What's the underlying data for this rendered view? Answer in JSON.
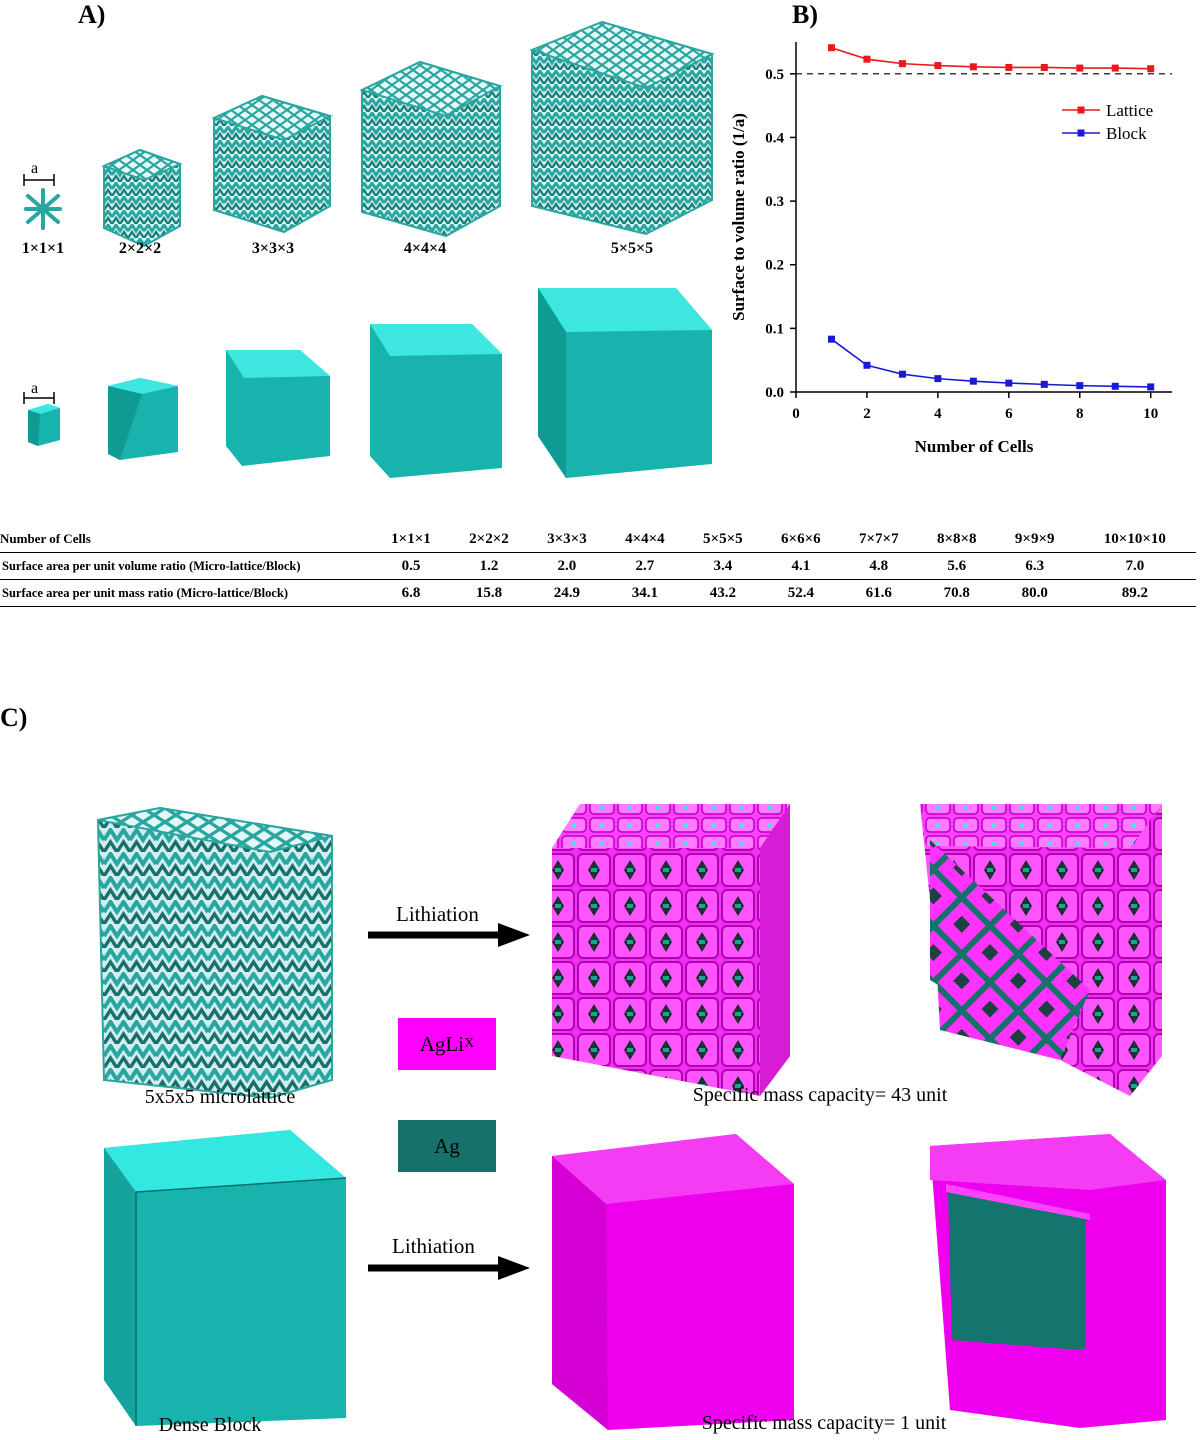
{
  "panels": {
    "a": "A)",
    "b": "B)",
    "c": "C)"
  },
  "panel_a": {
    "dimension_label": "a",
    "lattice_labels": [
      "1×1×1",
      "2×2×2",
      "3×3×3",
      "4×4×4",
      "5×5×5"
    ],
    "lattice_color": "#2aa6a0",
    "block_color": "#17b3ac"
  },
  "chart_data": {
    "type": "line",
    "ylabel": "Surface to volume ratio (1/a)",
    "xlabel": "Number of Cells",
    "xlim": [
      0,
      10.6
    ],
    "ylim": [
      0,
      0.55
    ],
    "xticks": [
      0,
      2,
      4,
      6,
      8,
      10
    ],
    "yticks": [
      0.0,
      0.1,
      0.2,
      0.3,
      0.4,
      0.5
    ],
    "ytick_labels": [
      "0.0",
      "0.1",
      "0.2",
      "0.3",
      "0.4",
      "0.5"
    ],
    "reference_line": 0.5,
    "legend_position": "upper-right",
    "x": [
      1,
      2,
      3,
      4,
      5,
      6,
      7,
      8,
      9,
      10
    ],
    "series": [
      {
        "name": "Lattice",
        "color": "#e8191d",
        "values": [
          0.541,
          0.523,
          0.516,
          0.513,
          0.511,
          0.51,
          0.51,
          0.509,
          0.509,
          0.508
        ]
      },
      {
        "name": "Block",
        "color": "#1a1ad6",
        "values": [
          0.083,
          0.042,
          0.028,
          0.021,
          0.017,
          0.014,
          0.012,
          0.01,
          0.009,
          0.008
        ]
      }
    ]
  },
  "table": {
    "header": [
      "Number of Cells",
      "1×1×1",
      "2×2×2",
      "3×3×3",
      "4×4×4",
      "5×5×5",
      "6×6×6",
      "7×7×7",
      "8×8×8",
      "9×9×9",
      "10×10×10"
    ],
    "rows": [
      [
        "Surface area per unit volume ratio (Micro-lattice/Block)",
        "0.5",
        "1.2",
        "2.0",
        "2.7",
        "3.4",
        "4.1",
        "4.8",
        "5.6",
        "6.3",
        "7.0"
      ],
      [
        "Surface area per unit mass ratio (Micro-lattice/Block)",
        "6.8",
        "15.8",
        "24.9",
        "34.1",
        "43.2",
        "52.4",
        "61.6",
        "70.8",
        "80.0",
        "89.2"
      ]
    ]
  },
  "panel_c": {
    "arrow_label_top": "Lithiation",
    "arrow_label_bottom": "Lithiation",
    "caption_lattice": "5x5x5 microlattice",
    "caption_block": "Dense Block",
    "capacity_top": "Specific mass capacity= 43 unit",
    "capacity_bottom": "Specific mass capacity= 1 unit",
    "legend": [
      {
        "label": "AgLi",
        "subscript": "X",
        "color": "#ff00ff"
      },
      {
        "label": "Ag",
        "subscript": "",
        "color": "#16716a"
      }
    ]
  }
}
